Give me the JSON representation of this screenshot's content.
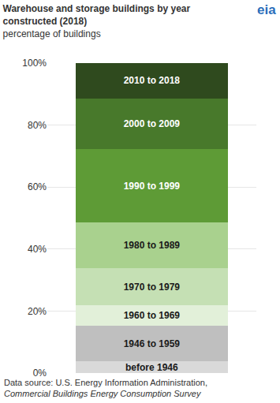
{
  "chart_data": {
    "type": "bar",
    "title": "Warehouse and storage buildings by year constructed (2018)",
    "subtitle": "percentage of buildings",
    "source": "Data source: U.S. Energy Information Administration, Commercial Buildings Energy Consumption Survey",
    "logo": "eia",
    "categories": [
      null
    ],
    "stacked": true,
    "grid": true,
    "tick_labels": "y",
    "ylim": [
      0,
      100
    ],
    "yticks": [
      {
        "value": 0,
        "label": "0%"
      },
      {
        "value": 20,
        "label": "20%"
      },
      {
        "value": 40,
        "label": "40%"
      },
      {
        "value": 60,
        "label": "60%"
      },
      {
        "value": 80,
        "label": "80%"
      },
      {
        "value": 100,
        "label": "100%"
      }
    ],
    "series": [
      {
        "name": "before 1946",
        "color": "#d9d9d9",
        "values": [
          3.8
        ]
      },
      {
        "name": "1946 to 1959",
        "color": "#bfbfbf",
        "values": [
          11.4
        ]
      },
      {
        "name": "1960 to 1969",
        "color": "#e2f0d9",
        "values": [
          6.6
        ]
      },
      {
        "name": "1970 to 1979",
        "color": "#c5e0b4",
        "values": [
          12.1
        ]
      },
      {
        "name": "1980 to 1989",
        "color": "#a9d18e",
        "values": [
          14.7
        ]
      },
      {
        "name": "1990 to 1999",
        "color": "#5e9b36",
        "values": [
          23.6
        ]
      },
      {
        "name": "2000 to 2009",
        "color": "#48792b",
        "values": [
          16.4
        ]
      },
      {
        "name": "2010 to 2018",
        "color": "#2f4a1e",
        "values": [
          11.4
        ]
      }
    ]
  }
}
